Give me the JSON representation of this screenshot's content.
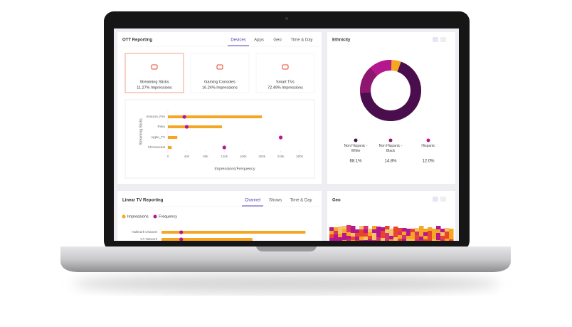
{
  "ott": {
    "title": "OTT Reporting",
    "tabs": [
      "Devices",
      "Apps",
      "Geo",
      "Time & Day"
    ],
    "cards": [
      {
        "label": "Streaming Sticks",
        "sub": "11.27% Impressions"
      },
      {
        "label": "Gaming Consoles",
        "sub": "16.24% Impressions"
      },
      {
        "label": "Smart TVs",
        "sub": "72.49% Impressions"
      }
    ],
    "chart": {
      "type": "bar",
      "y_label": "Streaming Sticks",
      "x_label": "Impressions/Frequency",
      "categories": [
        "Amazon_Fire",
        "Roku",
        "Apple_TV",
        "Chromecast"
      ],
      "series": [
        {
          "name": "Impressions",
          "color": "#f5a623",
          "values": [
            200000,
            115000,
            20000,
            8000
          ]
        },
        {
          "name": "Frequency",
          "color": "#b5178f",
          "values": [
            35000,
            40000,
            240000,
            120000
          ]
        }
      ],
      "xlim": [
        0,
        280000
      ],
      "xticks": [
        0,
        {
          "value": 40000,
          "label": "40k"
        },
        {
          "value": 80000,
          "label": "80k"
        },
        {
          "value": 120000,
          "label": "120k"
        },
        {
          "value": 160000,
          "label": "160k"
        },
        {
          "value": 200000,
          "label": "200k"
        },
        {
          "value": 240000,
          "label": "240k"
        },
        {
          "value": 280000,
          "label": "280k"
        }
      ]
    }
  },
  "ethnicity": {
    "title": "Ethnicity",
    "chart": {
      "type": "pie",
      "categories": [
        "Non Hispanic - White",
        "Non Hispanic - Black",
        "Hispanic"
      ],
      "values": [
        68.1,
        14.8,
        12.0
      ],
      "value_labels": [
        "68.1%",
        "14.8%",
        "12.0%"
      ],
      "colors": [
        "#4a0d4e",
        "#8e1670",
        "#b5178f"
      ]
    }
  },
  "linear": {
    "title": "Linear TV Reporting",
    "tabs": [
      "Channel",
      "Shows",
      "Time & Day"
    ],
    "chart": {
      "type": "bar",
      "categories": [
        "Hallmark Channel",
        "CT Network"
      ],
      "series": [
        {
          "name": "Impressions",
          "color": "#f5a623",
          "values": [
            95,
            60
          ]
        },
        {
          "name": "Frequency",
          "color": "#b5178f",
          "values": [
            13,
            13
          ]
        }
      ],
      "xlim": [
        0,
        100
      ]
    }
  },
  "geo": {
    "title": "Geo"
  }
}
